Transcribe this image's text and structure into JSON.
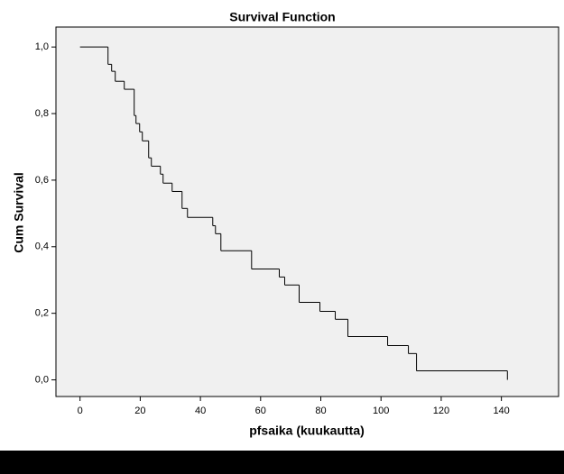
{
  "chart_data": {
    "type": "step",
    "title": "Survival Function",
    "x_label": "pfsaika (kuukautta)",
    "y_label": "Cum Survival",
    "x": [
      0,
      9.3,
      10.5,
      11.7,
      14.7,
      18.0,
      18.6,
      19.8,
      20.7,
      22.8,
      23.7,
      26.7,
      27.6,
      30.6,
      33.9,
      35.7,
      44.1,
      45.0,
      46.8,
      57.0,
      66.2,
      68.0,
      72.8,
      79.7,
      84.8,
      89.0,
      102.2,
      109.1,
      111.8,
      142
    ],
    "values": [
      1.0,
      0.948,
      0.927,
      0.897,
      0.873,
      0.794,
      0.77,
      0.745,
      0.718,
      0.667,
      0.642,
      0.618,
      0.591,
      0.566,
      0.515,
      0.488,
      0.463,
      0.439,
      0.388,
      0.333,
      0.309,
      0.285,
      0.233,
      0.206,
      0.182,
      0.13,
      0.103,
      0.079,
      0.027,
      0
    ],
    "color": "#000000",
    "xlim": [
      -8,
      159
    ],
    "ylim": [
      -0.05,
      1.06
    ],
    "xticks": [
      0,
      20,
      40,
      60,
      80,
      100,
      120,
      140
    ],
    "yticks": [
      {
        "value": 0,
        "label": "0,0"
      },
      {
        "value": 0.2,
        "label": "0,2"
      },
      {
        "value": 0.4,
        "label": "0,4"
      },
      {
        "value": 0.6,
        "label": "0,6"
      },
      {
        "value": 0.8,
        "label": "0,8"
      },
      {
        "value": 1.0,
        "label": "1,0"
      }
    ]
  }
}
